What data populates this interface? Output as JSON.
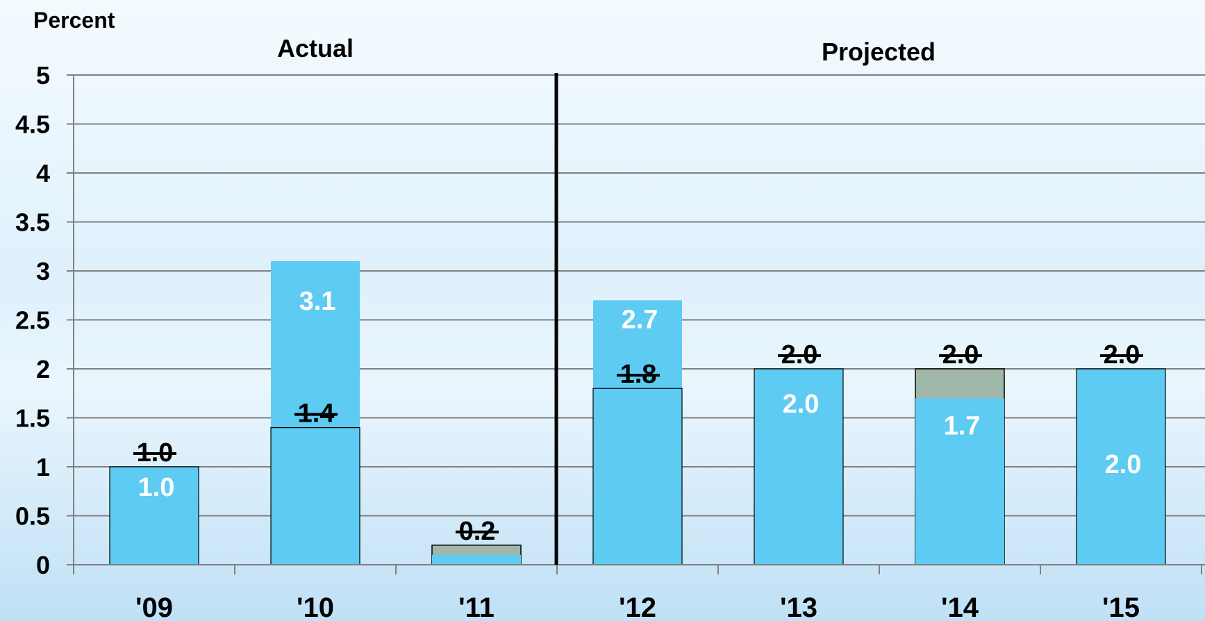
{
  "chart_data": {
    "type": "bar",
    "ylabel": "Percent",
    "ylim": [
      0,
      5
    ],
    "yticks": [
      "0",
      "0.5",
      "1",
      "1.5",
      "2",
      "2.5",
      "3",
      "3.5",
      "4",
      "4.5",
      "5"
    ],
    "grid": true,
    "categories": [
      "'09",
      "'10",
      "'11",
      "'12",
      "'13",
      "'14",
      "'15"
    ],
    "sections": [
      {
        "label": "Actual",
        "categories": [
          "'09",
          "'10",
          "'11"
        ]
      },
      {
        "label": "Projected",
        "categories": [
          "'12",
          "'13",
          "'14",
          "'15"
        ]
      }
    ],
    "series": [
      {
        "values": [
          1.0,
          3.1,
          0.1,
          2.7,
          2.0,
          1.7,
          2.0
        ],
        "labels": [
          "1.0",
          "3.1",
          "",
          "2.7",
          "2.0",
          "1.7",
          "2.0"
        ]
      },
      {
        "values": [
          1.0,
          1.4,
          0.2,
          1.8,
          2.0,
          2.0,
          2.0
        ],
        "labels": [
          "1.0",
          "1.4",
          "0.2",
          "1.8",
          "2.0",
          "2.0",
          "2.0"
        ],
        "strikethrough": true
      }
    ],
    "colors": {
      "current": "#5ecbf3",
      "previous_outline": "#000000",
      "previous_fill": "#9fb7a8"
    }
  }
}
